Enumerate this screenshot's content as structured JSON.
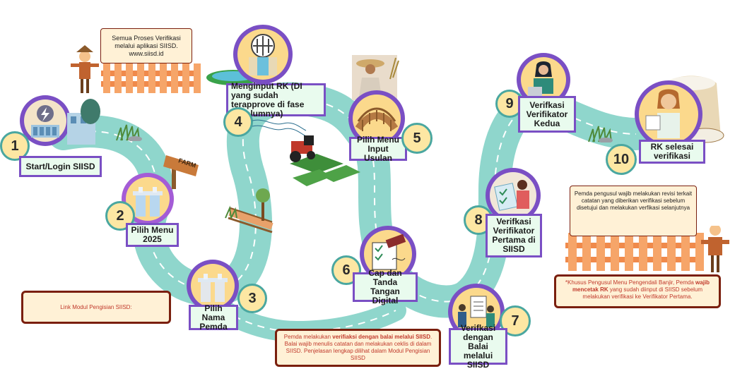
{
  "steps": [
    {
      "num": "1",
      "label": "Start/Login SIISD"
    },
    {
      "num": "2",
      "label": "Pilih Menu 2025"
    },
    {
      "num": "3",
      "label": "Pilih Nama Pemda"
    },
    {
      "num": "4",
      "label": "Menginput RK (DI yang sudah terapprove di fase sebelumnya)"
    },
    {
      "num": "5",
      "label": "Pilih Menu Input Usulan"
    },
    {
      "num": "6",
      "label": "Cap dan Tanda Tangan Digital"
    },
    {
      "num": "7",
      "label": "Verifkasi dengan Balai melalui SIISD"
    },
    {
      "num": "8",
      "label": "Verifkasi Verifikator Pertama di SIISD"
    },
    {
      "num": "9",
      "label": "Verifkasi Verifikator Kedua"
    },
    {
      "num": "10",
      "label": "RK selesai verifikasi"
    }
  ],
  "notes": {
    "top_sign": "Semua Proses Verifikasi melalui aplikasi SIISD. www.siisd.id",
    "farm_sign": "FARM",
    "link_modul": "Link Modul Pengisian SIISD:",
    "balai_note_pre": "Pemda melakukan ",
    "balai_note_bold": "verifiaksi dengan balai melalui SIISD",
    "balai_note_post": ". Balai wajib menulis catatan dan melakukan ceklis di dalam SIISD. Penjelasan lengkap dilihat dalam Modul Pengisian SIISD",
    "revisi_note": "Pemda pengusul wajib melakukan revisi terkait catatan yang diberikan verifikasi sebelum disetujui dan melakukan verfikasi selanjutnya",
    "khusus_pre": "*Khusus Pengusul Menu Pengendali Banjir, Pemda ",
    "khusus_bold": "wajib mencetak RK",
    "khusus_post": " yang sudah diinput di SIISD sebelum melakukan verifikasi ke Verifikator Pertama."
  },
  "colors": {
    "road": "#8fd6cc",
    "road_dash": "#ffffff",
    "circle_ring": "#7a4fc4",
    "number_fill": "#fde7a3",
    "label_fill": "#e9fbee",
    "note_text": "#c0392b",
    "fence": "#f08a4b"
  },
  "icons": [
    "lightning-icon",
    "factory-icon",
    "sluice-gate-icon",
    "bridge-icon",
    "stamp-icon",
    "meeting-icon",
    "checklist-icon",
    "laptop-icon",
    "rice-icon",
    "tractor-icon",
    "scarecrow-icon",
    "tree-icon"
  ]
}
